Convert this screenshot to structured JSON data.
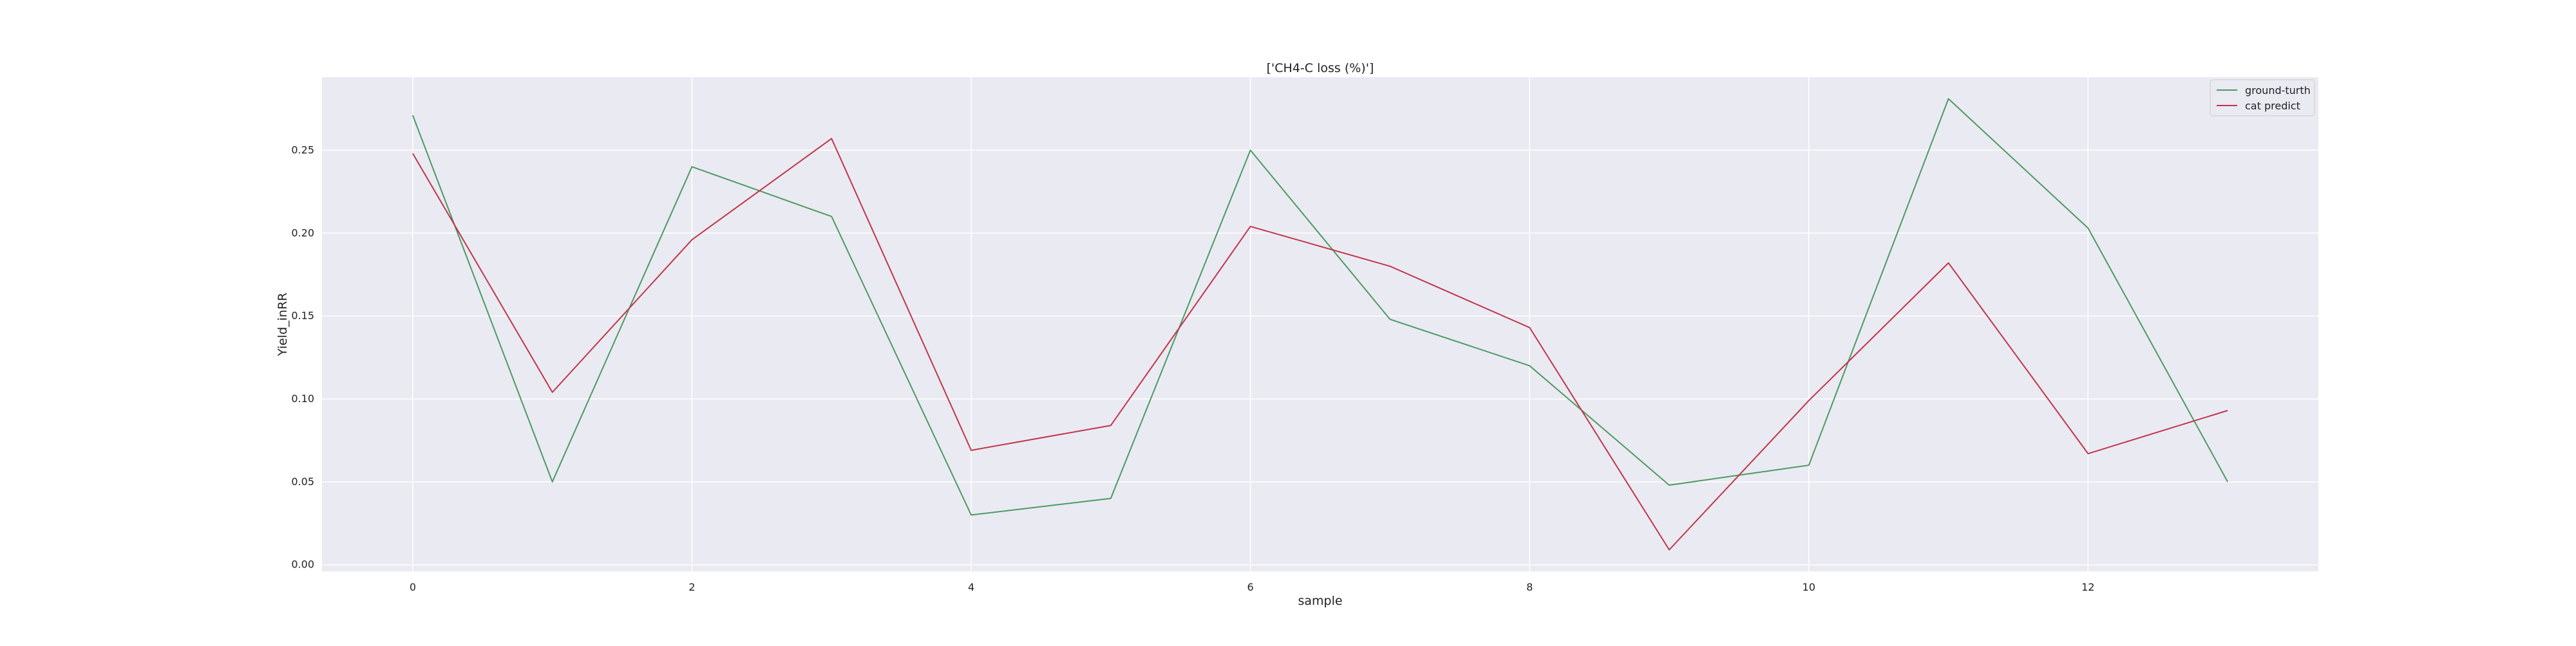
{
  "chart_data": {
    "type": "line",
    "title": "['CH4-C loss (%)']",
    "xlabel": "sample",
    "ylabel": "Yield_inRR",
    "x": [
      0,
      1,
      2,
      3,
      4,
      5,
      6,
      7,
      8,
      9,
      10,
      11,
      12,
      13
    ],
    "xlim": [
      -0.65,
      13.65
    ],
    "ylim": [
      -0.004,
      0.294
    ],
    "xticks": [
      0,
      2,
      4,
      6,
      8,
      10,
      12
    ],
    "xtick_labels": [
      "0",
      "2",
      "4",
      "6",
      "8",
      "10",
      "12"
    ],
    "yticks": [
      0.0,
      0.05,
      0.1,
      0.15,
      0.2,
      0.25
    ],
    "ytick_labels": [
      "0.00",
      "0.05",
      "0.10",
      "0.15",
      "0.20",
      "0.25"
    ],
    "grid": true,
    "legend_position": "top-right",
    "series": [
      {
        "name": "ground-turth",
        "color": "#4c9a62",
        "values": [
          0.271,
          0.05,
          0.24,
          0.21,
          0.03,
          0.04,
          0.25,
          0.148,
          0.12,
          0.048,
          0.06,
          0.281,
          0.203,
          0.05
        ]
      },
      {
        "name": "cat predict",
        "color": "#c0354a",
        "values": [
          0.248,
          0.104,
          0.196,
          0.257,
          0.069,
          0.084,
          0.204,
          0.18,
          0.143,
          0.009,
          0.099,
          0.182,
          0.067,
          0.093
        ]
      }
    ],
    "plot_background": "#eaeaf2",
    "grid_color": "#ffffff"
  }
}
